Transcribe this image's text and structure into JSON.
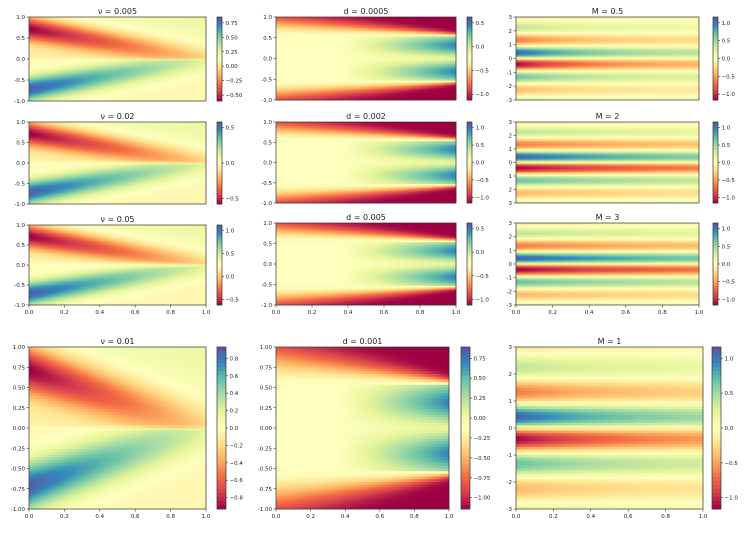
{
  "colormap": {
    "name": "Spectral",
    "stops": [
      "#9e0142",
      "#d53e4f",
      "#f46d43",
      "#fdae61",
      "#fee08b",
      "#ffffbf",
      "#e6f598",
      "#abdda4",
      "#66c2a5",
      "#3288bd",
      "#5e4fa2"
    ]
  },
  "chart_data": [
    {
      "id": "p1",
      "type": "heatmap",
      "family": "nu",
      "title": "ν = 0.005",
      "param": 0.005,
      "xlim": [
        0,
        1
      ],
      "ylim": [
        -1,
        1
      ],
      "vlim": [
        -0.75,
        0.75
      ],
      "yticks": [
        "-1.0",
        "-0.5",
        "0.0",
        "0.5",
        "1.0"
      ],
      "xticks": [],
      "cticks": [
        "0.75",
        "0.50",
        "0.25",
        "0.00",
        "−0.25",
        "−0.50"
      ]
    },
    {
      "id": "p2",
      "type": "heatmap",
      "family": "nu",
      "title": "ν = 0.02",
      "param": 0.02,
      "xlim": [
        0,
        1
      ],
      "ylim": [
        -1,
        1
      ],
      "vlim": [
        -0.95,
        0.95
      ],
      "yticks": [
        "-1.0",
        "-0.5",
        "0.0",
        "0.5",
        "1.0"
      ],
      "xticks": [],
      "cticks": [
        "0.5",
        "0.0",
        "−0.5"
      ]
    },
    {
      "id": "p3",
      "type": "heatmap",
      "family": "nu",
      "title": "ν = 0.05",
      "param": 0.05,
      "xlim": [
        0,
        1
      ],
      "ylim": [
        -1,
        1
      ],
      "vlim": [
        -0.95,
        1.0
      ],
      "yticks": [
        "-1.0",
        "-0.5",
        "0.0",
        "0.5",
        "1.0"
      ],
      "xticks": [
        "0.0",
        "0.2",
        "0.4",
        "0.6",
        "0.8",
        "1.0"
      ],
      "cticks": [
        "1.0",
        "0.5",
        "0.0",
        "−0.5"
      ]
    },
    {
      "id": "p4",
      "type": "heatmap",
      "family": "nu",
      "title": "ν = 0.01",
      "param": 0.01,
      "xlim": [
        0,
        1
      ],
      "ylim": [
        -1,
        1
      ],
      "vlim": [
        -0.9,
        0.8
      ],
      "yticks": [
        "-1.00",
        "-0.75",
        "-0.50",
        "-0.25",
        "0.00",
        "0.25",
        "0.50",
        "0.75",
        "1.00"
      ],
      "xticks": [
        "0.0",
        "0.2",
        "0.4",
        "0.6",
        "0.8",
        "1.0"
      ],
      "cticks": [
        "0.8",
        "0.6",
        "0.4",
        "0.2",
        "0.0",
        "−0.2",
        "−0.4",
        "−0.6",
        "−0.8"
      ]
    },
    {
      "id": "p5",
      "type": "heatmap",
      "family": "d",
      "title": "d = 0.0005",
      "param": 0.0005,
      "xlim": [
        0,
        1
      ],
      "ylim": [
        -1,
        1
      ],
      "vlim": [
        -1,
        1
      ],
      "yticks": [
        "-1.0",
        "-0.5",
        "0.0",
        "0.5",
        "1.0"
      ],
      "xticks": [],
      "cticks": [
        "0.5",
        "0.0",
        "−0.5",
        "−1.0"
      ]
    },
    {
      "id": "p6",
      "type": "heatmap",
      "family": "d",
      "title": "d = 0.002",
      "param": 0.002,
      "xlim": [
        0,
        1
      ],
      "ylim": [
        -1,
        1
      ],
      "vlim": [
        -1,
        1
      ],
      "yticks": [
        "-1.0",
        "-0.5",
        "0.0",
        "0.5",
        "1.0"
      ],
      "xticks": [],
      "cticks": [
        "1.0",
        "0.5",
        "0.0",
        "−0.5",
        "−1.0"
      ]
    },
    {
      "id": "p7",
      "type": "heatmap",
      "family": "d",
      "title": "d = 0.005",
      "param": 0.005,
      "xlim": [
        0,
        1
      ],
      "ylim": [
        -1,
        1
      ],
      "vlim": [
        -1,
        1
      ],
      "yticks": [
        "-1.0",
        "-0.5",
        "0.0",
        "0.5",
        "1.0"
      ],
      "xticks": [
        "0.0",
        "0.2",
        "0.4",
        "0.6",
        "0.8",
        "1.0"
      ],
      "cticks": [
        "0.5",
        "0.0",
        "−0.5",
        "−1.0"
      ]
    },
    {
      "id": "p8",
      "type": "heatmap",
      "family": "d",
      "title": "d = 0.001",
      "param": 0.001,
      "xlim": [
        0,
        1
      ],
      "ylim": [
        -1,
        1
      ],
      "vlim": [
        -1,
        1
      ],
      "yticks": [
        "-1.00",
        "-0.75",
        "-0.50",
        "-0.25",
        "0.00",
        "0.25",
        "0.50",
        "0.75",
        "1.00"
      ],
      "xticks": [
        "0.0",
        "0.2",
        "0.4",
        "0.6",
        "0.8",
        "1.0"
      ],
      "cticks": [
        "0.75",
        "0.50",
        "0.25",
        "0.00",
        "−0.25",
        "−0.50",
        "−0.75",
        "−1.00"
      ]
    },
    {
      "id": "p9",
      "type": "heatmap",
      "family": "M",
      "title": "M = 0.5",
      "param": 0.5,
      "xlim": [
        0,
        1
      ],
      "ylim": [
        -3.1,
        3.1
      ],
      "vlim": [
        -1.4,
        1.4
      ],
      "yticks": [
        "-3",
        "-2",
        "-1",
        "0",
        "1",
        "2",
        "3"
      ],
      "xticks": [],
      "cticks": [
        "1.0",
        "0.5",
        "0.0",
        "−0.5",
        "−1.0"
      ]
    },
    {
      "id": "p10",
      "type": "heatmap",
      "family": "M",
      "title": "M = 2",
      "param": 2,
      "xlim": [
        0,
        1
      ],
      "ylim": [
        -3.1,
        3.1
      ],
      "vlim": [
        -1.3,
        1.3
      ],
      "yticks": [
        "3",
        "2",
        "1",
        "0",
        "1",
        "2",
        "3"
      ],
      "xticks": [],
      "cticks": [
        "1.0",
        "0.5",
        "0.0",
        "−0.5",
        "−1.0"
      ]
    },
    {
      "id": "p11",
      "type": "heatmap",
      "family": "M",
      "title": "M = 3",
      "param": 3,
      "xlim": [
        0,
        1
      ],
      "ylim": [
        -3.1,
        3.1
      ],
      "vlim": [
        -1.3,
        1.3
      ],
      "yticks": [
        "-3",
        "-2",
        "-1",
        "0",
        "1",
        "2",
        "3"
      ],
      "xticks": [
        "0.0",
        "0.2",
        "0.4",
        "0.6",
        "0.8",
        "1.0"
      ],
      "cticks": [
        "1.0",
        "0.5",
        "0.0",
        "−0.5",
        "−1.0"
      ]
    },
    {
      "id": "p12",
      "type": "heatmap",
      "family": "M",
      "title": "M = 1",
      "param": 1,
      "xlim": [
        0,
        1
      ],
      "ylim": [
        -3.1,
        3.1
      ],
      "vlim": [
        -1.4,
        1.4
      ],
      "yticks": [
        "-3",
        "-2",
        "-1",
        "0",
        "1",
        "2",
        "3"
      ],
      "xticks": [
        "0.0",
        "0.2",
        "0.4",
        "0.6",
        "0.8",
        "1.0"
      ],
      "cticks": [
        "1.0",
        "0.5",
        "0.0",
        "−0.5",
        "−1.0"
      ]
    }
  ]
}
